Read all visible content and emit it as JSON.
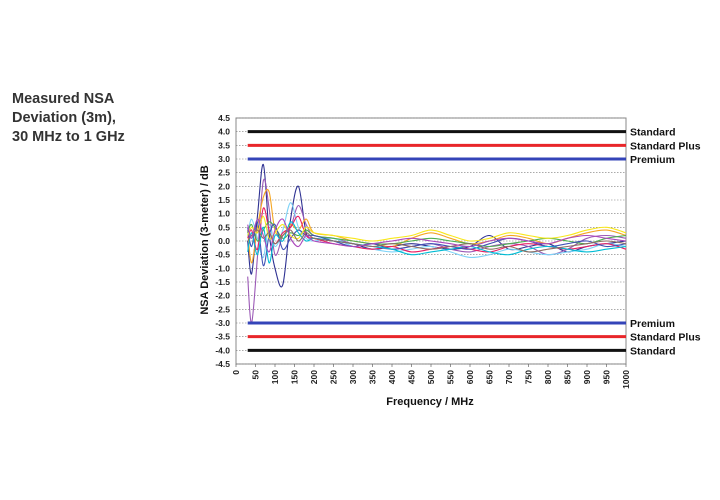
{
  "figure": {
    "title_lines": [
      "Measured NSA",
      "Deviation (3m),",
      "30 MHz to 1 GHz"
    ]
  },
  "chart_data": {
    "type": "line",
    "xlabel": "Frequency / MHz",
    "ylabel": "NSA Deviation (3-meter) / dB",
    "xlim": [
      0,
      1000
    ],
    "ylim": [
      -4.5,
      4.5
    ],
    "x_ticks": [
      0,
      50,
      100,
      150,
      200,
      250,
      300,
      350,
      400,
      450,
      500,
      550,
      600,
      650,
      700,
      750,
      800,
      850,
      900,
      950,
      1000
    ],
    "y_ticks": [
      4.5,
      4.0,
      3.5,
      3.0,
      2.5,
      2.0,
      1.5,
      1.0,
      0.5,
      0.0,
      -0.5,
      -1.0,
      -1.5,
      -2.0,
      -2.5,
      -3.0,
      -3.5,
      -4.0,
      -4.5
    ],
    "y_tick_labels": [
      "4.5",
      "4.0",
      "3.5",
      "3.0",
      "2.5",
      "2.0",
      "1.5",
      "1.0",
      "0.5",
      "0.0",
      "-0.5",
      "-1.0",
      "-1.5",
      "-2.0",
      "-2.5",
      "-3.0",
      "-3.5",
      "-4.0",
      "-4.5"
    ],
    "grid": true,
    "limits": [
      {
        "label": "Standard",
        "value": 4.0,
        "color": "#111111"
      },
      {
        "label": "Standard Plus",
        "value": 3.5,
        "color": "#e8262a"
      },
      {
        "label": "Premium",
        "value": 3.0,
        "color": "#3444b8"
      },
      {
        "label": "Premium",
        "value": -3.0,
        "color": "#3444b8"
      },
      {
        "label": "Standard Plus",
        "value": -3.5,
        "color": "#e8262a"
      },
      {
        "label": "Standard",
        "value": -4.0,
        "color": "#111111"
      }
    ],
    "series": [
      {
        "color": "#2e3192",
        "x": [
          30,
          40,
          55,
          70,
          85,
          100,
          120,
          140,
          160,
          180,
          200,
          250,
          300,
          350,
          400,
          450,
          500,
          550,
          600,
          650,
          700,
          750,
          800,
          850,
          900,
          950,
          1000
        ],
        "y": [
          0.0,
          -1.2,
          0.9,
          2.8,
          0.3,
          -1.0,
          -1.6,
          0.8,
          2.0,
          0.3,
          0.1,
          0.0,
          -0.1,
          -0.3,
          -0.2,
          -0.1,
          -0.2,
          -0.3,
          -0.2,
          0.2,
          -0.3,
          -0.2,
          -0.1,
          -0.4,
          -0.2,
          -0.1,
          0.0
        ]
      },
      {
        "color": "#9b59b6",
        "x": [
          30,
          40,
          55,
          70,
          85,
          100,
          120,
          140,
          160,
          180,
          200,
          250,
          300,
          350,
          400,
          450,
          500,
          550,
          600,
          650,
          700,
          750,
          800,
          850,
          900,
          950,
          1000
        ],
        "y": [
          -1.3,
          -3.0,
          -0.6,
          2.2,
          1.2,
          -0.5,
          0.2,
          0.5,
          1.3,
          0.6,
          0.2,
          0.1,
          -0.1,
          -0.2,
          -0.3,
          -0.2,
          -0.1,
          -0.3,
          -0.4,
          -0.2,
          -0.1,
          -0.2,
          -0.5,
          -0.3,
          0.1,
          0.2,
          0.1
        ]
      },
      {
        "color": "#f5a623",
        "x": [
          30,
          40,
          55,
          70,
          85,
          100,
          120,
          140,
          160,
          180,
          200,
          250,
          300,
          350,
          400,
          450,
          500,
          550,
          600,
          650,
          700,
          750,
          800,
          850,
          900,
          950,
          1000
        ],
        "y": [
          0.4,
          -0.8,
          0.5,
          1.6,
          1.8,
          0.4,
          0.2,
          0.6,
          0.4,
          0.8,
          0.3,
          0.2,
          0.0,
          -0.1,
          -0.2,
          0.1,
          0.3,
          0.1,
          -0.1,
          0.0,
          0.2,
          0.1,
          -0.1,
          0.1,
          0.3,
          0.4,
          0.2
        ]
      },
      {
        "color": "#7ed3f7",
        "x": [
          30,
          40,
          55,
          70,
          85,
          100,
          120,
          140,
          160,
          180,
          200,
          250,
          300,
          350,
          400,
          450,
          500,
          550,
          600,
          650,
          700,
          750,
          800,
          850,
          900,
          950,
          1000
        ],
        "y": [
          0.2,
          0.8,
          0.1,
          -0.6,
          0.6,
          -0.2,
          0.4,
          1.4,
          0.5,
          0.1,
          0.0,
          0.1,
          -0.2,
          -0.3,
          -0.4,
          -0.3,
          -0.2,
          -0.4,
          -0.6,
          -0.5,
          -0.3,
          -0.4,
          -0.5,
          -0.4,
          -0.3,
          -0.1,
          -0.2
        ]
      },
      {
        "color": "#e91e63",
        "x": [
          30,
          40,
          55,
          70,
          85,
          100,
          120,
          140,
          160,
          180,
          200,
          250,
          300,
          350,
          400,
          450,
          500,
          550,
          600,
          650,
          700,
          750,
          800,
          850,
          900,
          950,
          1000
        ],
        "y": [
          0.1,
          0.4,
          -0.3,
          1.2,
          0.4,
          -0.1,
          0.3,
          0.5,
          0.9,
          0.2,
          0.1,
          -0.1,
          -0.2,
          -0.3,
          -0.2,
          -0.4,
          -0.3,
          -0.2,
          -0.3,
          -0.4,
          -0.2,
          -0.1,
          -0.2,
          -0.3,
          -0.2,
          -0.1,
          -0.3
        ]
      },
      {
        "color": "#4caf50",
        "x": [
          30,
          40,
          55,
          70,
          85,
          100,
          120,
          140,
          160,
          180,
          200,
          250,
          300,
          350,
          400,
          450,
          500,
          550,
          600,
          650,
          700,
          750,
          800,
          850,
          900,
          950,
          1000
        ],
        "y": [
          0.3,
          0.6,
          0.0,
          0.4,
          0.7,
          0.5,
          0.1,
          0.3,
          0.2,
          0.4,
          0.2,
          0.1,
          0.0,
          -0.1,
          -0.1,
          0.0,
          0.1,
          0.0,
          -0.1,
          -0.2,
          -0.1,
          0.0,
          0.1,
          0.0,
          -0.1,
          0.1,
          0.2
        ]
      },
      {
        "color": "#3f51b5",
        "x": [
          30,
          40,
          55,
          70,
          85,
          100,
          120,
          140,
          160,
          180,
          200,
          250,
          300,
          350,
          400,
          450,
          500,
          550,
          600,
          650,
          700,
          750,
          800,
          850,
          900,
          950,
          1000
        ],
        "y": [
          0.5,
          -0.2,
          0.7,
          -0.9,
          0.2,
          0.6,
          -0.3,
          0.1,
          0.4,
          0.2,
          0.2,
          0.0,
          -0.2,
          -0.1,
          -0.3,
          -0.2,
          -0.1,
          -0.2,
          -0.3,
          -0.1,
          0.1,
          0.0,
          -0.2,
          -0.1,
          0.0,
          -0.2,
          -0.1
        ]
      },
      {
        "color": "#f8e71c",
        "x": [
          30,
          40,
          55,
          70,
          85,
          100,
          120,
          140,
          160,
          180,
          200,
          250,
          300,
          350,
          400,
          450,
          500,
          550,
          600,
          650,
          700,
          750,
          800,
          850,
          900,
          950,
          1000
        ],
        "y": [
          0.2,
          0.5,
          0.3,
          0.9,
          0.1,
          0.3,
          0.6,
          0.2,
          0.1,
          0.5,
          0.3,
          0.2,
          0.1,
          0.0,
          0.1,
          0.2,
          0.4,
          0.2,
          0.0,
          0.1,
          0.3,
          0.2,
          0.1,
          0.2,
          0.4,
          0.5,
          0.3
        ]
      },
      {
        "color": "#00bcd4",
        "x": [
          30,
          40,
          55,
          70,
          85,
          100,
          120,
          140,
          160,
          180,
          200,
          250,
          300,
          350,
          400,
          450,
          500,
          550,
          600,
          650,
          700,
          750,
          800,
          850,
          900,
          950,
          1000
        ],
        "y": [
          -0.4,
          0.3,
          -0.5,
          0.5,
          -0.8,
          0.2,
          0.0,
          0.7,
          0.3,
          0.0,
          0.1,
          0.0,
          -0.1,
          -0.2,
          -0.3,
          -0.5,
          -0.4,
          -0.3,
          -0.2,
          -0.4,
          -0.5,
          -0.3,
          -0.2,
          -0.3,
          -0.4,
          -0.3,
          -0.2
        ]
      },
      {
        "color": "#8d6e63",
        "x": [
          30,
          40,
          55,
          70,
          85,
          100,
          120,
          140,
          160,
          180,
          200,
          250,
          300,
          350,
          400,
          450,
          500,
          550,
          600,
          650,
          700,
          750,
          800,
          850,
          900,
          950,
          1000
        ],
        "y": [
          0.0,
          0.2,
          0.4,
          0.1,
          0.3,
          -0.1,
          0.2,
          0.4,
          0.0,
          0.3,
          0.1,
          0.0,
          -0.1,
          -0.2,
          -0.1,
          -0.2,
          -0.3,
          -0.2,
          -0.1,
          -0.3,
          -0.2,
          -0.4,
          -0.3,
          -0.2,
          -0.1,
          0.0,
          -0.1
        ]
      },
      {
        "color": "#ab47bc",
        "x": [
          30,
          40,
          55,
          70,
          85,
          100,
          120,
          140,
          160,
          180,
          200,
          250,
          300,
          350,
          400,
          450,
          500,
          550,
          600,
          650,
          700,
          750,
          800,
          850,
          900,
          950,
          1000
        ],
        "y": [
          0.6,
          0.1,
          0.8,
          0.2,
          -0.4,
          0.4,
          0.8,
          0.1,
          -0.2,
          0.2,
          0.0,
          -0.1,
          -0.2,
          -0.1,
          0.0,
          0.1,
          0.0,
          -0.1,
          -0.2,
          0.0,
          0.1,
          0.0,
          -0.1,
          0.1,
          0.2,
          0.1,
          0.0
        ]
      }
    ]
  }
}
